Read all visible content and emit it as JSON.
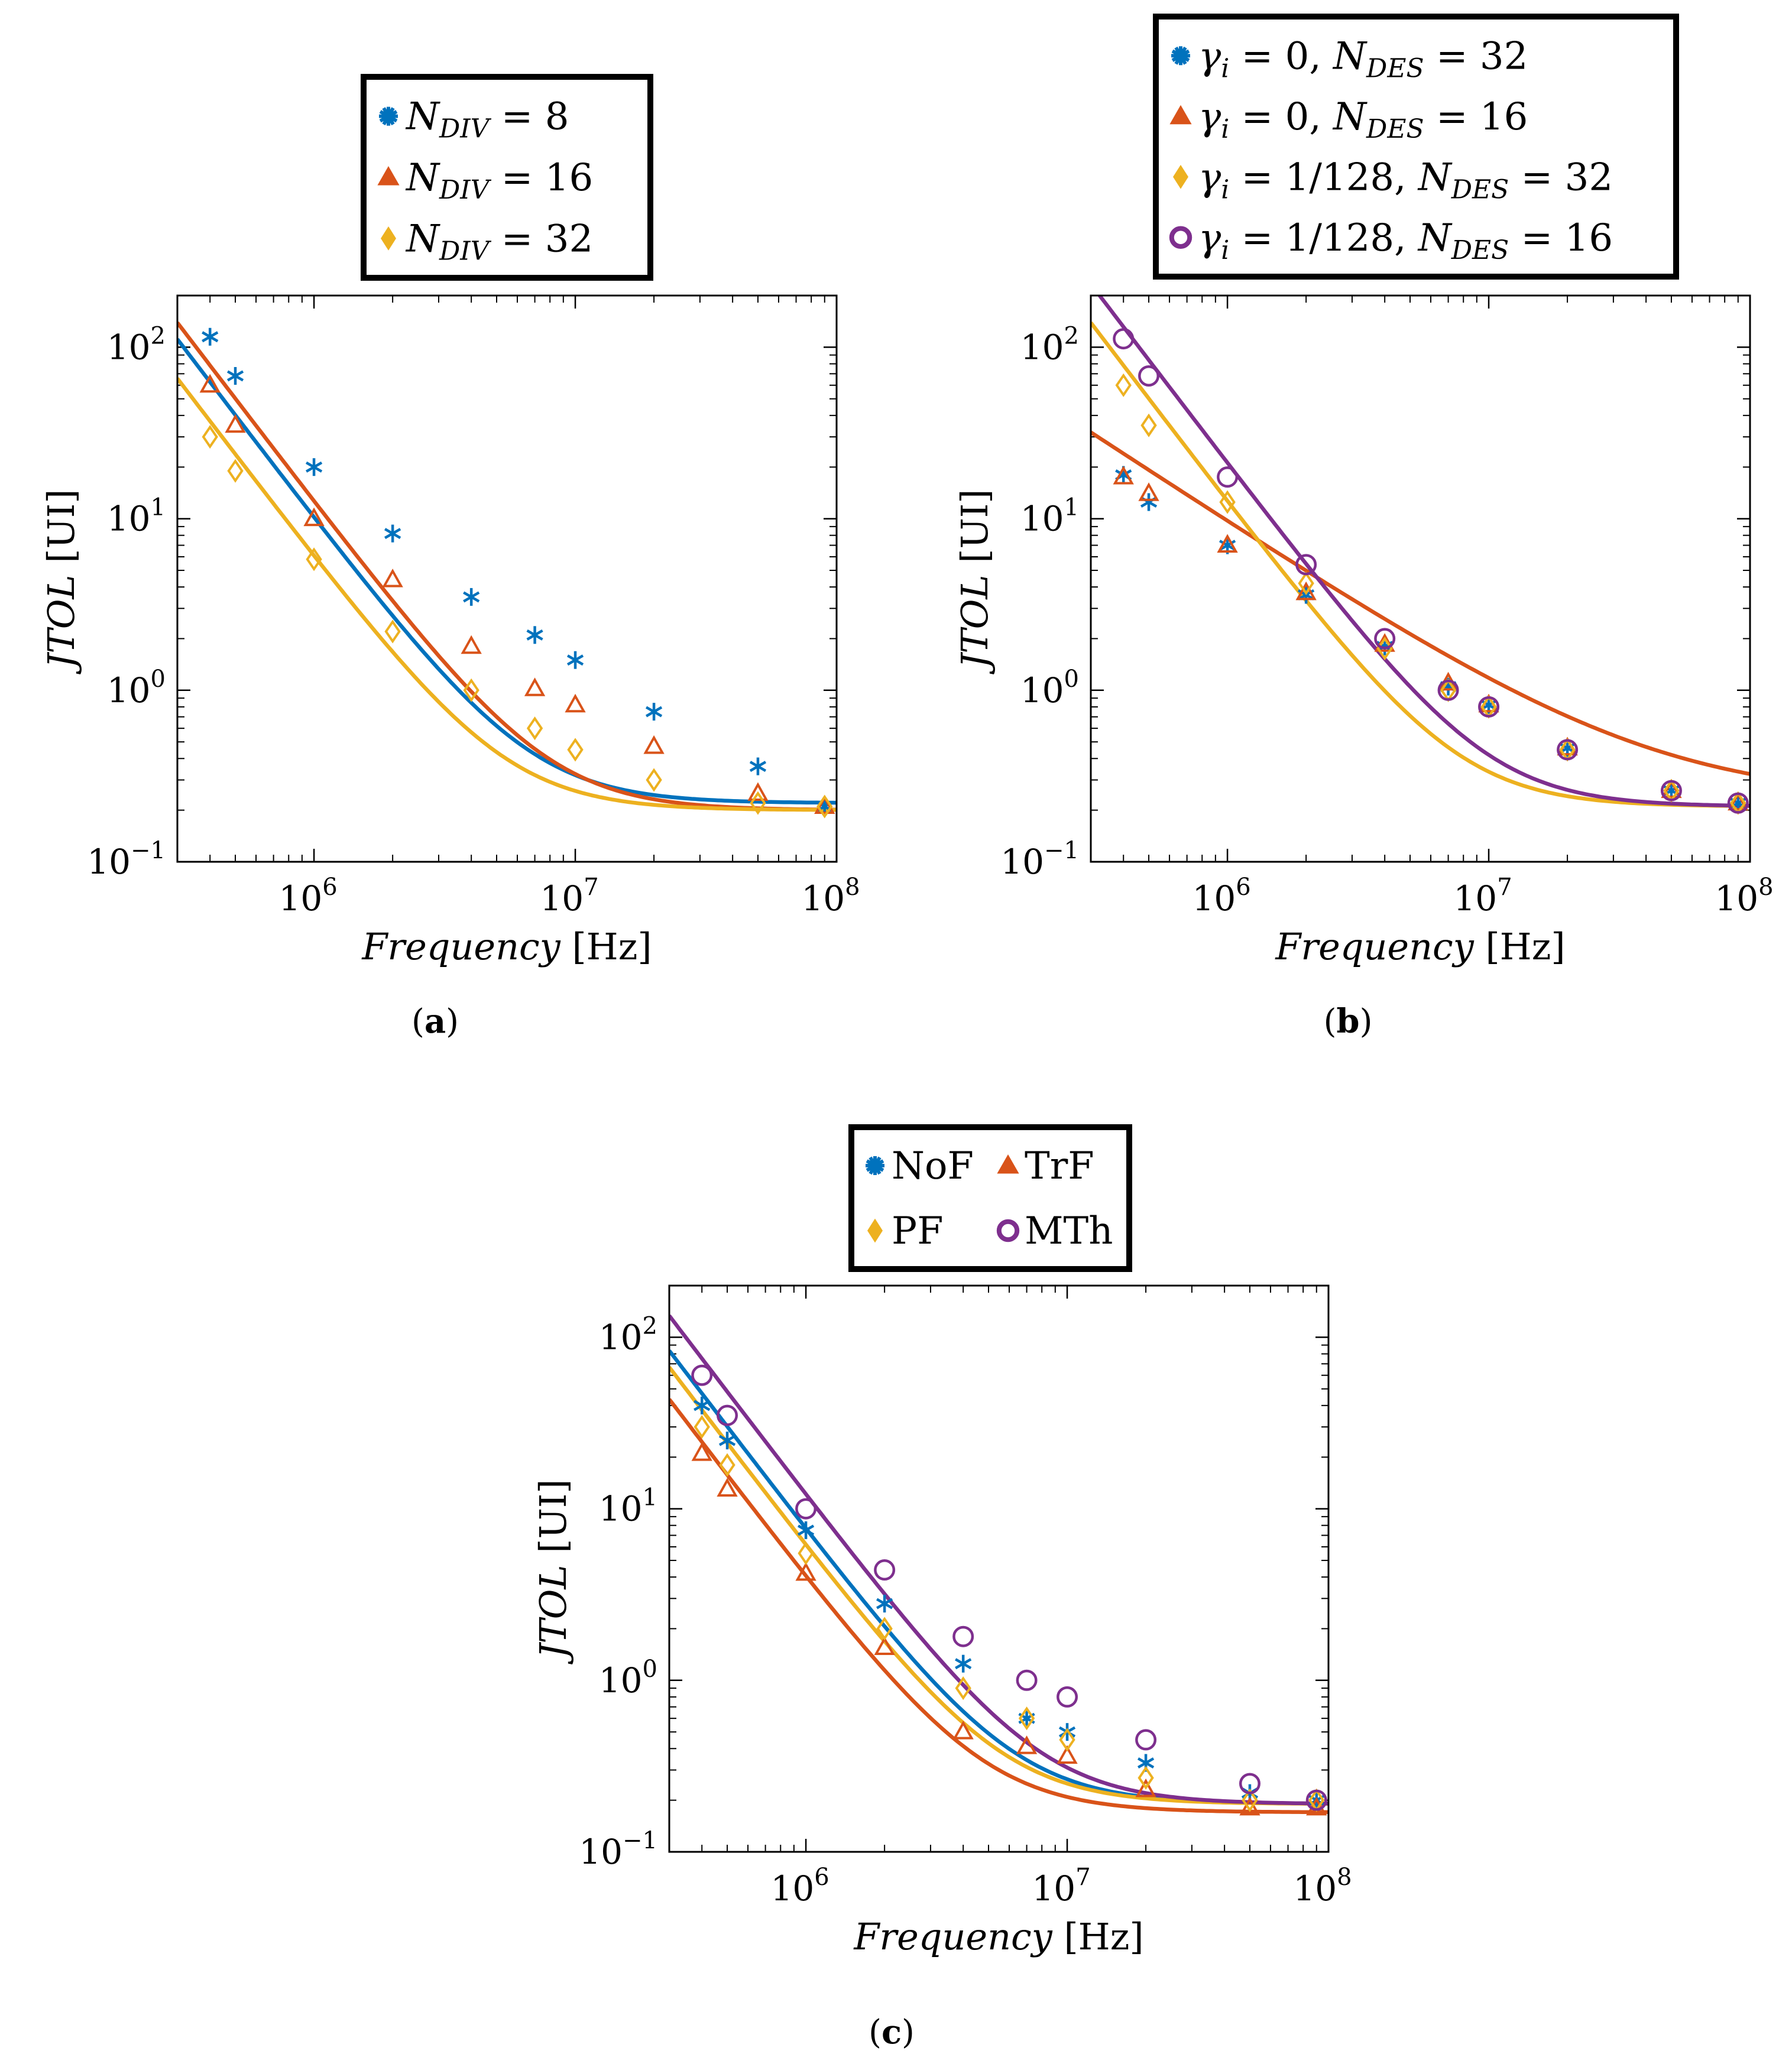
{
  "colors": {
    "blue": "#0072BD",
    "red": "#D95319",
    "yellow": "#EDB120",
    "purple": "#7E2F8E",
    "axis": "#000000"
  },
  "chart_data": [
    {
      "type": "line",
      "panel": "a",
      "caption_letter": "a",
      "xlabel_italic": "Frequency",
      "xlabel_unit": "[Hz]",
      "ylabel_italic": "JTOL",
      "ylabel_unit": "[UI]",
      "xscale": "log",
      "yscale": "log",
      "xlim": [
        300000,
        100000000
      ],
      "ylim": [
        0.1,
        200
      ],
      "xticks": [
        {
          "base": "10",
          "exp": "6",
          "value": 1000000
        },
        {
          "base": "10",
          "exp": "7",
          "value": 10000000
        },
        {
          "base": "10",
          "exp": "8",
          "value": 100000000
        }
      ],
      "yticks": [
        {
          "base": "10",
          "exp": "−1",
          "value": 0.1
        },
        {
          "base": "10",
          "exp": "0",
          "value": 1
        },
        {
          "base": "10",
          "exp": "1",
          "value": 10
        },
        {
          "base": "10",
          "exp": "2",
          "value": 100
        }
      ],
      "legend_position": "top (above plot)",
      "series": [
        {
          "name": "N_DIV = 8",
          "legend_main": "N",
          "legend_sub": "DIV",
          "legend_rest": " = 8",
          "color": "blue",
          "marker": "asterisk",
          "x": [
            400000,
            500000,
            1000000,
            2000000,
            4000000,
            7000000,
            10000000,
            20000000,
            50000000,
            90000000
          ],
          "values": [
            115,
            68,
            20,
            8.2,
            3.5,
            2.1,
            1.5,
            0.75,
            0.36,
            0.21
          ],
          "fit": {
            "a": 10000000000000.0,
            "b": 0.22
          }
        },
        {
          "name": "N_DIV = 16",
          "legend_main": "N",
          "legend_sub": "DIV",
          "legend_rest": " = 16",
          "color": "red",
          "marker": "triangle",
          "x": [
            400000,
            500000,
            1000000,
            2000000,
            4000000,
            7000000,
            10000000,
            20000000,
            50000000,
            90000000
          ],
          "values": [
            60,
            35,
            10,
            4.4,
            1.8,
            1.02,
            0.82,
            0.47,
            0.25,
            0.21
          ],
          "fit": {
            "a": 12500000000000.0,
            "b": 0.2
          }
        },
        {
          "name": "N_DIV = 32",
          "legend_main": "N",
          "legend_sub": "DIV",
          "legend_rest": " = 32",
          "color": "yellow",
          "marker": "diamond",
          "x": [
            400000,
            500000,
            1000000,
            2000000,
            4000000,
            7000000,
            10000000,
            20000000,
            50000000,
            90000000
          ],
          "values": [
            30,
            19,
            5.8,
            2.2,
            1.0,
            0.6,
            0.45,
            0.3,
            0.22,
            0.21
          ],
          "fit": {
            "a": 5900000000000.0,
            "b": 0.2
          }
        }
      ]
    },
    {
      "type": "line",
      "panel": "b",
      "caption_letter": "b",
      "xlabel_italic": "Frequency",
      "xlabel_unit": "[Hz]",
      "ylabel_italic": "JTOL",
      "ylabel_unit": "[UI]",
      "xscale": "log",
      "yscale": "log",
      "xlim": [
        300000,
        100000000
      ],
      "ylim": [
        0.1,
        200
      ],
      "xticks": [
        {
          "base": "10",
          "exp": "6",
          "value": 1000000
        },
        {
          "base": "10",
          "exp": "7",
          "value": 10000000
        },
        {
          "base": "10",
          "exp": "8",
          "value": 100000000
        }
      ],
      "yticks": [
        {
          "base": "10",
          "exp": "−1",
          "value": 0.1
        },
        {
          "base": "10",
          "exp": "0",
          "value": 1
        },
        {
          "base": "10",
          "exp": "1",
          "value": 10
        },
        {
          "base": "10",
          "exp": "2",
          "value": 100
        }
      ],
      "legend_position": "top (above plot)",
      "series": [
        {
          "name": "γi = 0, NDES = 32",
          "legend_left": "γ",
          "legend_left_sub": "i",
          "legend_mid": " = 0, ",
          "legend_right": "N",
          "legend_right_sub": "DES",
          "legend_rest": " = 32",
          "color": "blue",
          "marker": "asterisk",
          "x": [
            400000,
            500000,
            1000000,
            2000000,
            4000000,
            7000000,
            10000000,
            20000000,
            50000000,
            90000000
          ],
          "values": [
            18,
            12.5,
            7,
            3.6,
            1.8,
            1.05,
            0.82,
            0.46,
            0.26,
            0.22
          ],
          "fit": null
        },
        {
          "name": "γi = 0, NDES = 16",
          "legend_left": "γ",
          "legend_left_sub": "i",
          "legend_mid": " = 0, ",
          "legend_right": "N",
          "legend_right_sub": "DES",
          "legend_rest": " = 16",
          "color": "red",
          "marker": "triangle",
          "x": [
            400000,
            500000,
            1000000,
            2000000,
            4000000,
            7000000,
            10000000,
            20000000,
            50000000,
            90000000
          ],
          "values": [
            17.5,
            14,
            7,
            3.7,
            1.85,
            1.1,
            0.82,
            0.46,
            0.26,
            0.22
          ],
          "fit": {
            "a": 9500000.0,
            "b": 0.23,
            "p": 1.0
          }
        },
        {
          "name": "γi = 1/128, NDES = 32",
          "legend_left": "γ",
          "legend_left_sub": "i",
          "legend_mid": " = 1/128, ",
          "legend_right": "N",
          "legend_right_sub": "DES",
          "legend_rest": " = 32",
          "color": "yellow",
          "marker": "diamond",
          "x": [
            400000,
            500000,
            1000000,
            2000000,
            4000000,
            7000000,
            10000000,
            20000000,
            50000000,
            90000000
          ],
          "values": [
            60,
            35,
            12.5,
            4.2,
            1.75,
            1.0,
            0.8,
            0.45,
            0.26,
            0.22
          ],
          "fit": {
            "a": 12500000000000.0,
            "b": 0.21
          }
        },
        {
          "name": "γi = 1/128, NDES = 16",
          "legend_left": "γ",
          "legend_left_sub": "i",
          "legend_mid": " = 1/128, ",
          "legend_right": "N",
          "legend_right_sub": "DES",
          "legend_rest": " = 16",
          "color": "purple",
          "marker": "circle",
          "x": [
            400000,
            500000,
            1000000,
            2000000,
            4000000,
            7000000,
            10000000,
            20000000,
            50000000,
            90000000
          ],
          "values": [
            112,
            68,
            17.5,
            5.4,
            2.0,
            1.0,
            0.8,
            0.45,
            0.26,
            0.22
          ],
          "fit": {
            "a": 21000000000000.0,
            "b": 0.21
          }
        }
      ]
    },
    {
      "type": "line",
      "panel": "c",
      "caption_letter": "c",
      "xlabel_italic": "Frequency",
      "xlabel_unit": "[Hz]",
      "ylabel_italic": "JTOL",
      "ylabel_unit": "[UI]",
      "xscale": "log",
      "yscale": "log",
      "xlim": [
        300000,
        100000000
      ],
      "ylim": [
        0.1,
        200
      ],
      "xticks": [
        {
          "base": "10",
          "exp": "6",
          "value": 1000000
        },
        {
          "base": "10",
          "exp": "7",
          "value": 10000000
        },
        {
          "base": "10",
          "exp": "8",
          "value": 100000000
        }
      ],
      "yticks": [
        {
          "base": "10",
          "exp": "−1",
          "value": 0.1
        },
        {
          "base": "10",
          "exp": "0",
          "value": 1
        },
        {
          "base": "10",
          "exp": "1",
          "value": 10
        },
        {
          "base": "10",
          "exp": "2",
          "value": 100
        }
      ],
      "legend_position": "top (above plot), 2 columns",
      "series": [
        {
          "name": "NoF",
          "color": "blue",
          "marker": "asterisk",
          "x": [
            400000,
            500000,
            1000000,
            2000000,
            4000000,
            7000000,
            10000000,
            20000000,
            50000000,
            90000000
          ],
          "values": [
            40,
            25,
            7.5,
            2.8,
            1.25,
            0.6,
            0.5,
            0.33,
            0.22,
            0.2
          ],
          "fit": {
            "a": 7500000000000.0,
            "b": 0.19
          }
        },
        {
          "name": "TrF",
          "color": "red",
          "marker": "triangle",
          "x": [
            400000,
            500000,
            1000000,
            2000000,
            4000000,
            7000000,
            10000000,
            20000000,
            50000000,
            90000000
          ],
          "values": [
            21,
            13,
            4.2,
            1.55,
            0.5,
            0.41,
            0.36,
            0.23,
            0.18,
            0.18
          ],
          "fit": {
            "a": 3900000000000.0,
            "b": 0.17
          }
        },
        {
          "name": "PF",
          "color": "yellow",
          "marker": "diamond",
          "x": [
            400000,
            500000,
            1000000,
            2000000,
            4000000,
            7000000,
            10000000,
            20000000,
            50000000,
            90000000
          ],
          "values": [
            30,
            18,
            5.5,
            2.0,
            0.9,
            0.6,
            0.45,
            0.27,
            0.2,
            0.2
          ],
          "fit": {
            "a": 6000000000000.0,
            "b": 0.19
          }
        },
        {
          "name": "MTh",
          "color": "purple",
          "marker": "circle",
          "x": [
            400000,
            500000,
            1000000,
            2000000,
            4000000,
            7000000,
            10000000,
            20000000,
            50000000,
            90000000
          ],
          "values": [
            60,
            35,
            10,
            4.4,
            1.8,
            1.0,
            0.8,
            0.45,
            0.25,
            0.2
          ],
          "fit": {
            "a": 12000000000000.0,
            "b": 0.19
          }
        }
      ]
    }
  ]
}
